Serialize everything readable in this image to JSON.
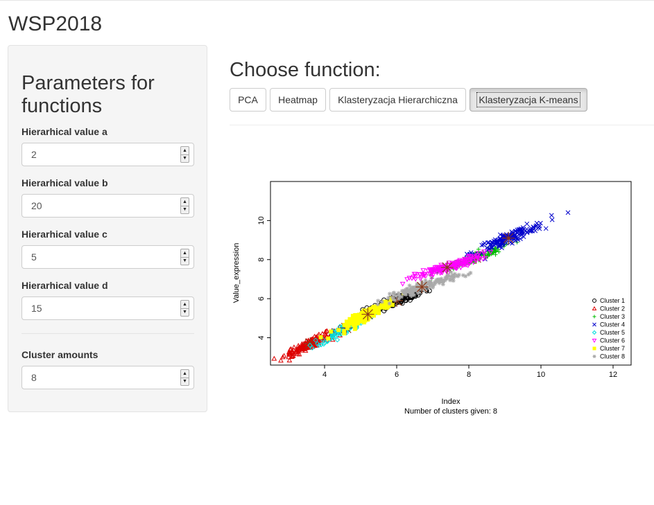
{
  "app": {
    "title": "WSP2018"
  },
  "sidebar": {
    "heading": "Parameters for functions",
    "fields": [
      {
        "label": "Hierarhical value a",
        "value": "2"
      },
      {
        "label": "Hierarhical value b",
        "value": "20"
      },
      {
        "label": "Hierarhical value c",
        "value": "5"
      },
      {
        "label": "Hierarhical value d",
        "value": "15"
      },
      {
        "label": "Cluster amounts",
        "value": "8"
      }
    ]
  },
  "main": {
    "title": "Choose function:",
    "buttons": [
      {
        "label": "PCA",
        "active": false
      },
      {
        "label": "Heatmap",
        "active": false
      },
      {
        "label": "Klasteryzacja Hierarchiczna",
        "active": false
      },
      {
        "label": "Klasteryzacja K-means",
        "active": true
      }
    ]
  },
  "chart_data": {
    "type": "scatter",
    "xlabel": "Index",
    "ylabel": "Value_expression",
    "subtitle": "Number of clusters given: 8",
    "xlim": [
      2.5,
      12.5
    ],
    "ylim": [
      2.6,
      12.0
    ],
    "xticks": [
      4,
      6,
      8,
      10,
      12
    ],
    "yticks": [
      4,
      6,
      8,
      10
    ],
    "legend_position": "bottom-right",
    "series": [
      {
        "name": "Cluster 1",
        "color": "#000000",
        "symbol": "circle",
        "center": [
          6.0,
          5.9
        ],
        "spread": [
          0.45,
          0.35
        ],
        "count": 160
      },
      {
        "name": "Cluster 2",
        "color": "#dd0000",
        "symbol": "triangle-up",
        "center": [
          3.6,
          3.7
        ],
        "spread": [
          0.35,
          0.35
        ],
        "count": 170
      },
      {
        "name": "Cluster 3",
        "color": "#00bb00",
        "symbol": "plus",
        "center": [
          8.2,
          8.1
        ],
        "spread": [
          0.45,
          0.35
        ],
        "count": 150
      },
      {
        "name": "Cluster 4",
        "color": "#0000cc",
        "symbol": "cross",
        "center": [
          9.1,
          9.1
        ],
        "spread": [
          0.5,
          0.45
        ],
        "count": 160
      },
      {
        "name": "Cluster 5",
        "color": "#00dddd",
        "symbol": "diamond",
        "center": [
          4.6,
          4.5
        ],
        "spread": [
          0.35,
          0.4
        ],
        "count": 130
      },
      {
        "name": "Cluster 6",
        "color": "#ff00ff",
        "symbol": "triangle-down",
        "center": [
          7.4,
          7.6
        ],
        "spread": [
          0.5,
          0.35
        ],
        "count": 160
      },
      {
        "name": "Cluster 7",
        "color": "#ffff00",
        "symbol": "square",
        "center": [
          5.2,
          5.2
        ],
        "spread": [
          0.35,
          0.4
        ],
        "count": 150
      },
      {
        "name": "Cluster 8",
        "color": "#aaaaaa",
        "symbol": "asterisk",
        "center": [
          6.7,
          6.6
        ],
        "spread": [
          0.5,
          0.35
        ],
        "count": 150
      }
    ]
  }
}
